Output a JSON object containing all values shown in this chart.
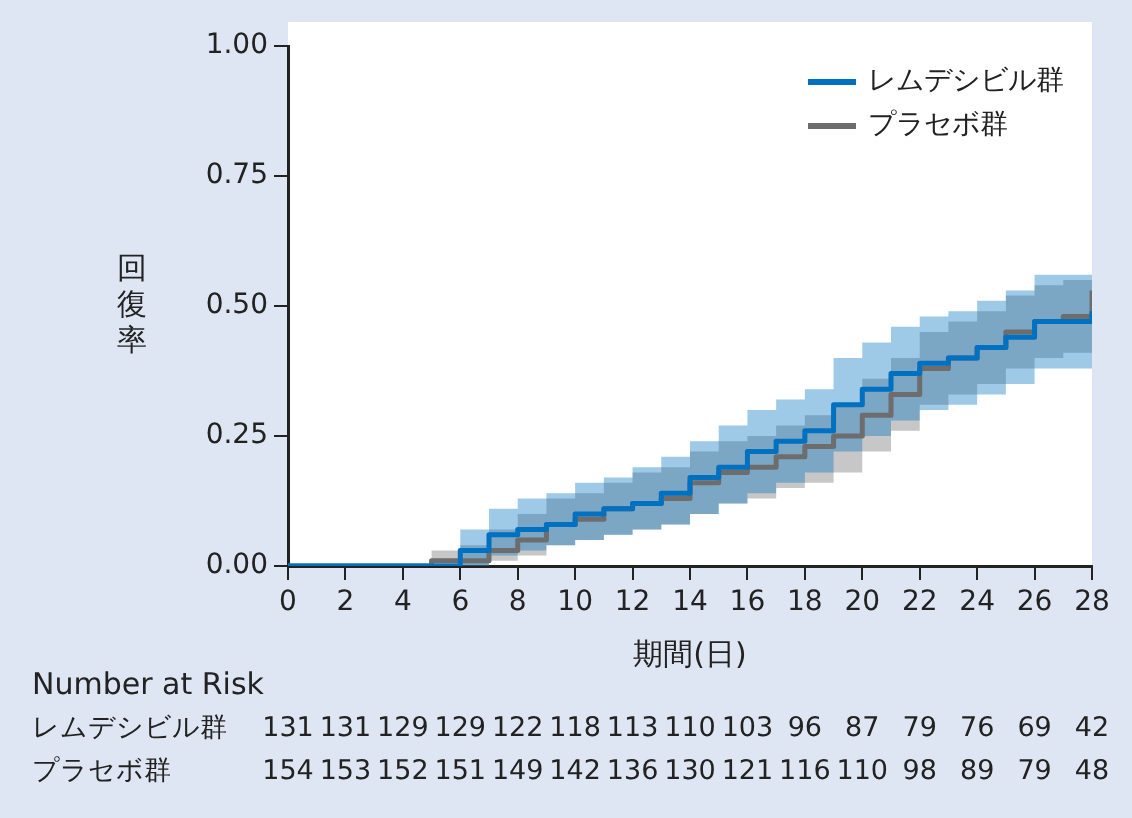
{
  "chart_data": {
    "type": "step",
    "xlabel": "期間(日)",
    "ylabel": "回復率",
    "x": [
      0,
      1,
      2,
      3,
      4,
      5,
      6,
      7,
      8,
      9,
      10,
      11,
      12,
      13,
      14,
      15,
      16,
      17,
      18,
      19,
      20,
      21,
      22,
      23,
      24,
      25,
      26,
      27,
      28
    ],
    "series": [
      {
        "name": "レムデシビル群",
        "color": "#0070c0",
        "values": [
          0,
          0,
          0,
          0,
          0,
          0,
          0.03,
          0.06,
          0.07,
          0.08,
          0.1,
          0.11,
          0.12,
          0.14,
          0.17,
          0.19,
          0.22,
          0.24,
          0.26,
          0.31,
          0.34,
          0.37,
          0.39,
          0.4,
          0.42,
          0.44,
          0.47,
          0.47,
          0.49
        ],
        "lower": [
          0,
          0,
          0,
          0,
          0,
          0,
          0,
          0.02,
          0.03,
          0.04,
          0.05,
          0.06,
          0.07,
          0.08,
          0.1,
          0.12,
          0.14,
          0.16,
          0.18,
          0.22,
          0.25,
          0.28,
          0.3,
          0.31,
          0.33,
          0.35,
          0.38,
          0.38,
          0.4
        ],
        "upper": [
          0,
          0,
          0,
          0,
          0,
          0,
          0.07,
          0.11,
          0.13,
          0.14,
          0.16,
          0.17,
          0.19,
          0.21,
          0.24,
          0.27,
          0.3,
          0.32,
          0.34,
          0.4,
          0.43,
          0.46,
          0.48,
          0.49,
          0.51,
          0.53,
          0.56,
          0.56,
          0.56
        ]
      },
      {
        "name": "プラセボ群",
        "color": "#6d6d6d",
        "values": [
          0,
          0,
          0,
          0,
          0,
          0.01,
          0.01,
          0.03,
          0.05,
          0.08,
          0.09,
          0.11,
          0.12,
          0.13,
          0.16,
          0.18,
          0.19,
          0.21,
          0.23,
          0.25,
          0.29,
          0.33,
          0.38,
          0.4,
          0.42,
          0.45,
          0.47,
          0.48,
          0.53
        ],
        "lower": [
          0,
          0,
          0,
          0,
          0,
          0,
          0,
          0.01,
          0.02,
          0.04,
          0.05,
          0.06,
          0.07,
          0.08,
          0.1,
          0.12,
          0.13,
          0.15,
          0.16,
          0.18,
          0.22,
          0.26,
          0.31,
          0.33,
          0.35,
          0.38,
          0.4,
          0.41,
          0.45
        ],
        "upper": [
          0,
          0,
          0,
          0,
          0,
          0.03,
          0.04,
          0.07,
          0.1,
          0.13,
          0.14,
          0.16,
          0.18,
          0.19,
          0.22,
          0.24,
          0.25,
          0.27,
          0.29,
          0.31,
          0.36,
          0.4,
          0.45,
          0.47,
          0.49,
          0.52,
          0.54,
          0.55,
          0.55
        ]
      }
    ],
    "xlim": [
      0,
      28
    ],
    "xticks": [
      0,
      2,
      4,
      6,
      8,
      10,
      12,
      14,
      16,
      18,
      20,
      22,
      24,
      26,
      28
    ],
    "ylim": [
      0,
      1
    ],
    "yticks": [
      {
        "value": 0,
        "label": "0.00"
      },
      {
        "value": 0.25,
        "label": "0.25"
      },
      {
        "value": 0.5,
        "label": "0.50"
      },
      {
        "value": 0.75,
        "label": "0.75"
      },
      {
        "value": 1,
        "label": "1.00"
      }
    ],
    "grid": false,
    "legend": "top right",
    "line_style": "solid",
    "marker": "none",
    "annotations": [
      "Number at Risk",
      "レムデシビル群 131 131 129 129 122 118 113 110 103 96 87 79 76 69 42",
      "プラセボ群 154 153 152 151 149 142 136 130 121 116 110 98 89 79 48"
    ]
  }
}
